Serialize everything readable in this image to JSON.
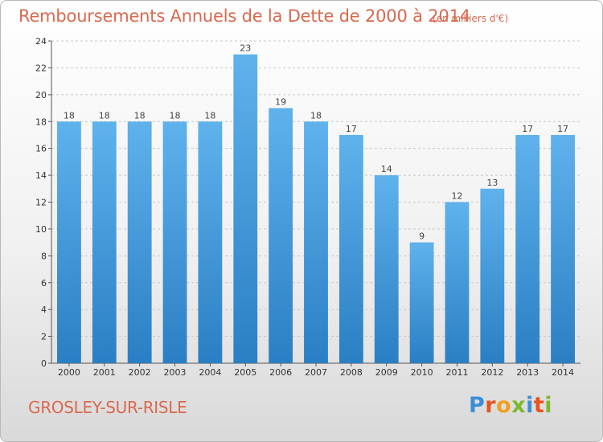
{
  "header": {
    "title": "Remboursements Annuels de la Dette de 2000 à 2014",
    "subtitle": "(en milliers d'€)"
  },
  "footer": {
    "city": "GROSLEY-SUR-RISLE",
    "logo_letters": [
      "P",
      "r",
      "o",
      "x",
      "i",
      "t",
      "i"
    ],
    "logo_colors": [
      "#3b8fd9",
      "#e8531f",
      "#f0a020",
      "#7cb82f",
      "#3b8fd9",
      "#e8531f",
      "#7cb82f"
    ]
  },
  "colors": {
    "bar_light": "#5fb2ec",
    "bar_dark": "#2a7fc4",
    "title": "#d9694e"
  },
  "chart_data": {
    "type": "bar",
    "title": "Remboursements Annuels de la Dette de 2000 à 2014",
    "subtitle": "(en milliers d'€)",
    "categories": [
      "2000",
      "2001",
      "2002",
      "2003",
      "2004",
      "2005",
      "2006",
      "2007",
      "2008",
      "2009",
      "2010",
      "2011",
      "2012",
      "2013",
      "2014"
    ],
    "values": [
      18,
      18,
      18,
      18,
      18,
      23,
      19,
      18,
      17,
      14,
      9,
      12,
      13,
      17,
      17
    ],
    "ylim": [
      0,
      24
    ],
    "yticks": [
      0,
      2,
      4,
      6,
      8,
      10,
      12,
      14,
      16,
      18,
      20,
      22,
      24
    ],
    "grid": true,
    "xlabel": "",
    "ylabel": ""
  }
}
